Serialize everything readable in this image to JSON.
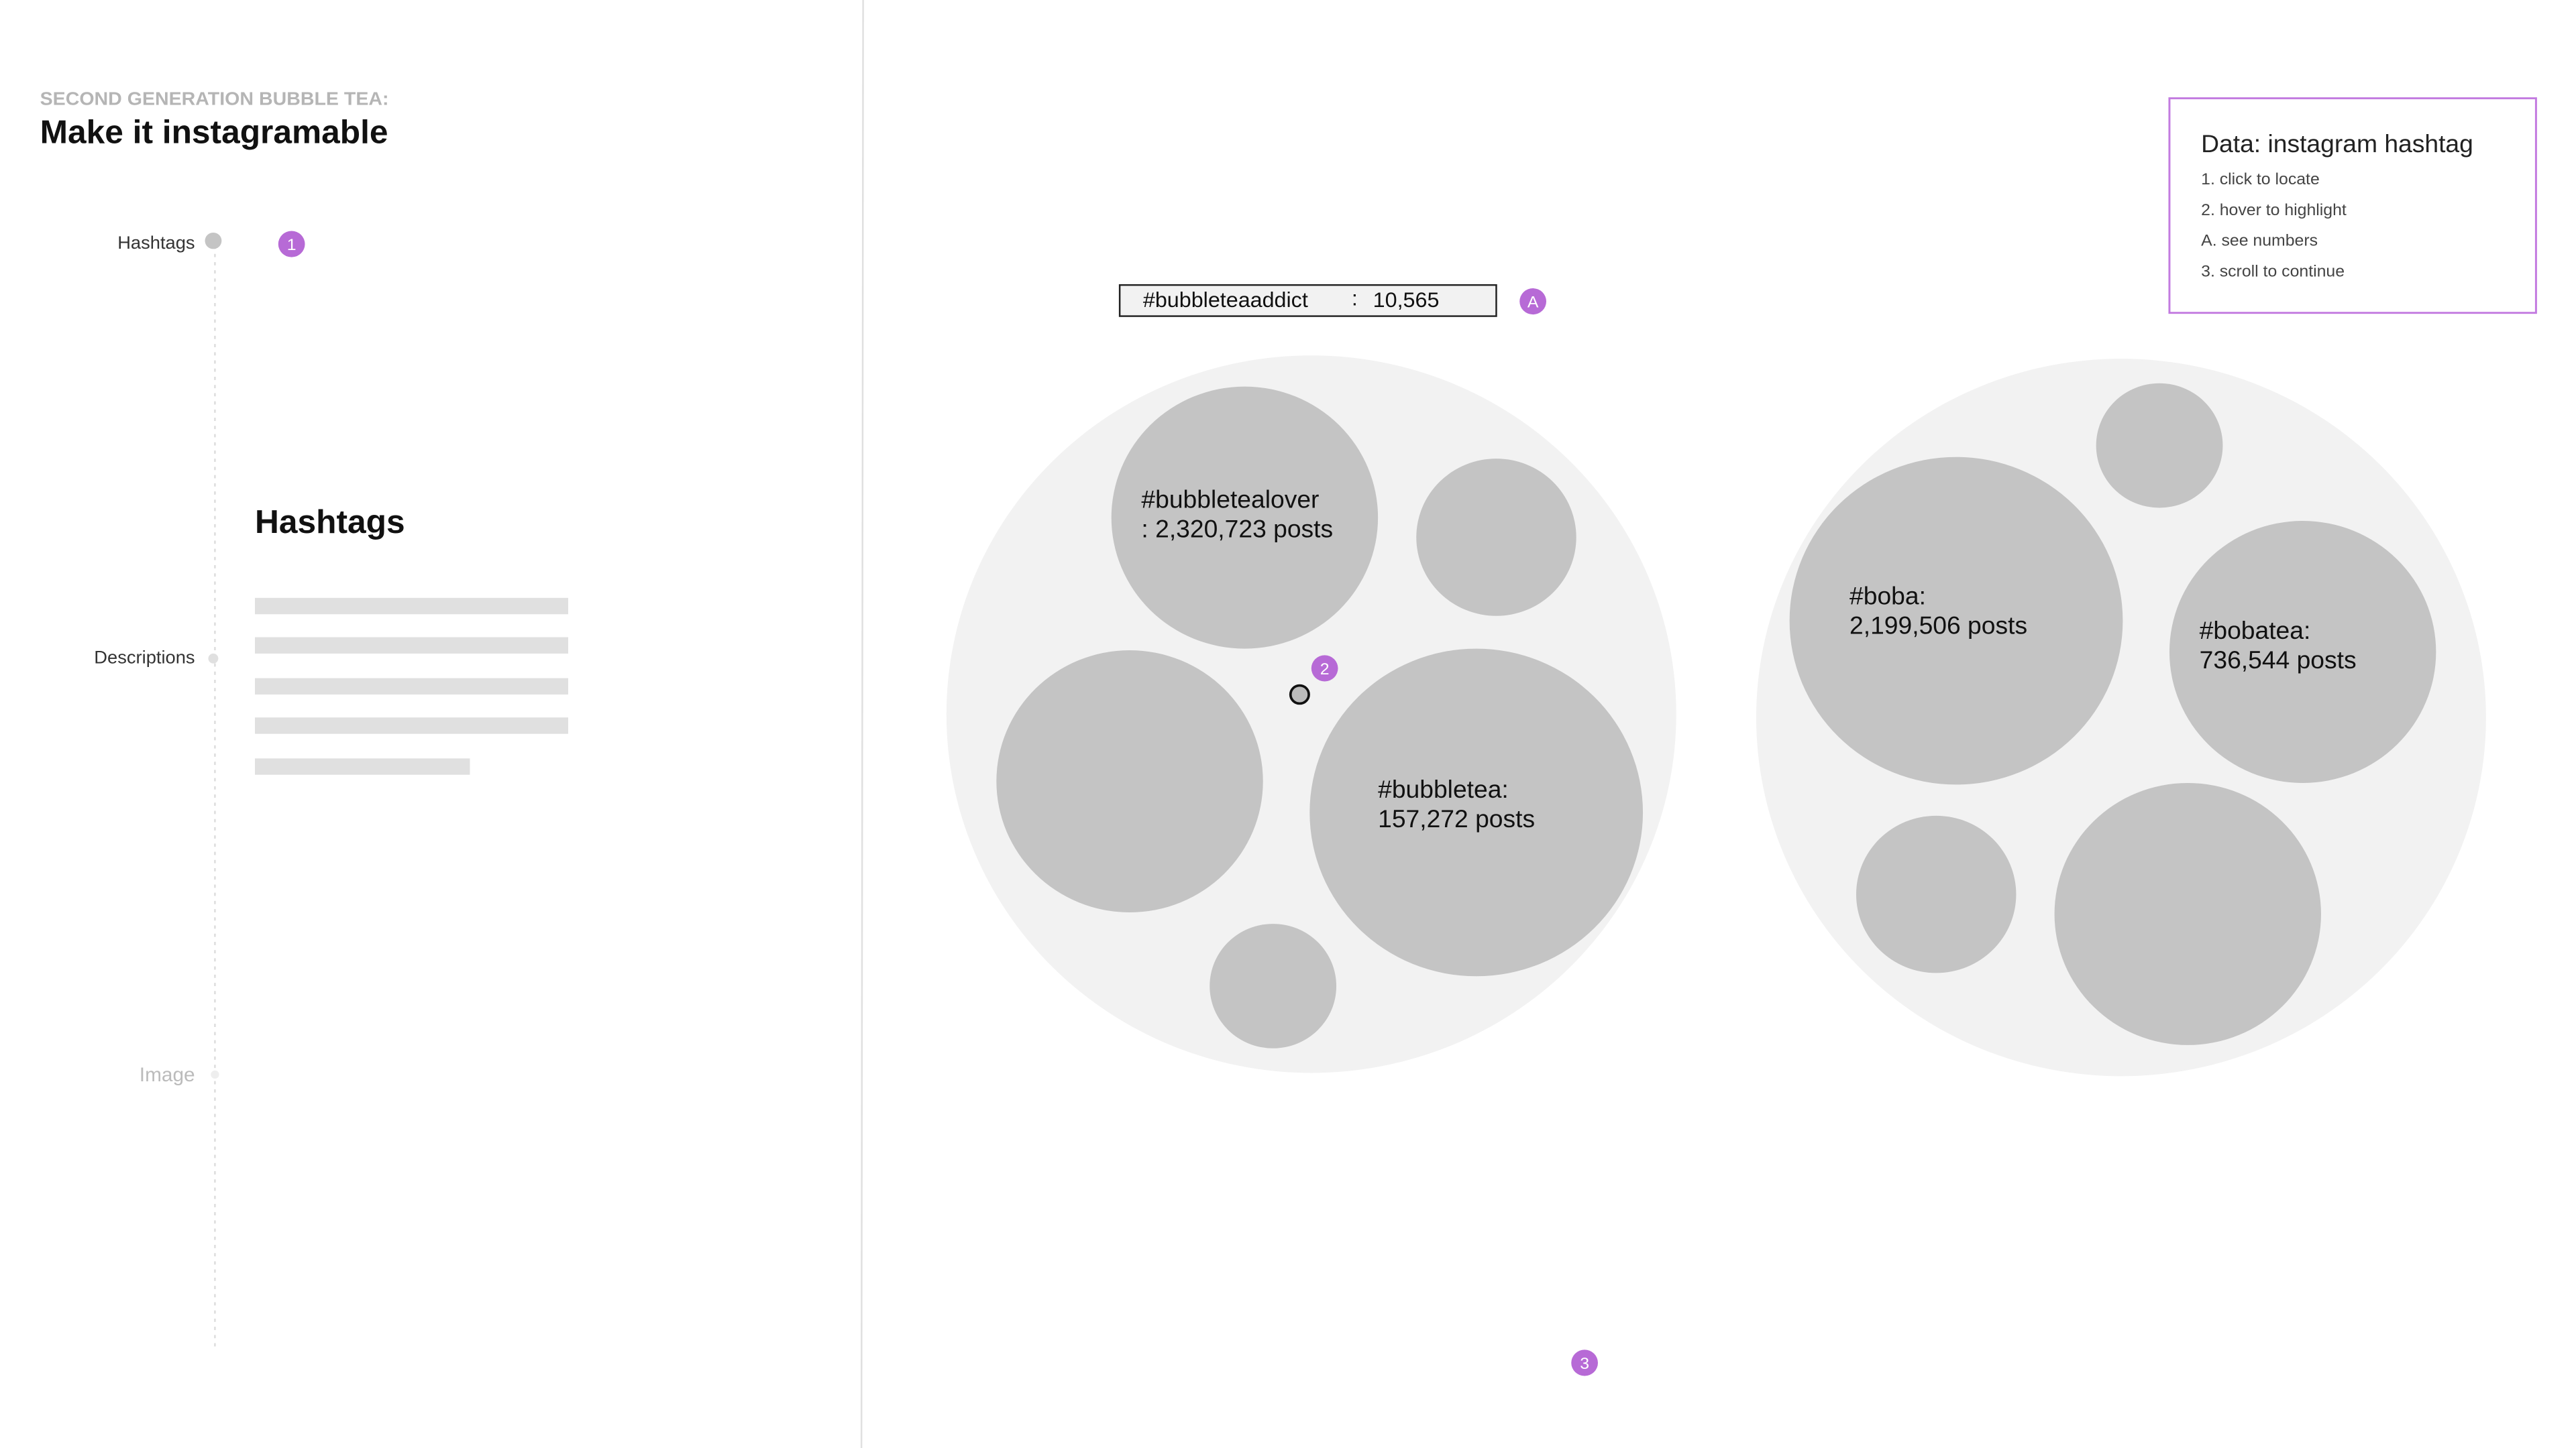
{
  "header": {
    "subtitle": "SECOND GENERATION BUBBLE TEA:",
    "title": "Make it instagramable"
  },
  "nav": [
    "Hashtags",
    "Descriptions",
    "Image"
  ],
  "section": {
    "heading": "Hashtags"
  },
  "tooltip": {
    "tag": "#bubbleteaaddict",
    "separator": ":",
    "count": "10,565"
  },
  "bubbles": [
    {
      "lines": [
        "#bubbletealover",
        ": 2,320,723 posts"
      ]
    },
    {
      "lines": [
        "#bubbletea:",
        "157,272 posts"
      ]
    },
    {
      "lines": [
        "#boba:",
        "2,199,506 posts"
      ]
    },
    {
      "lines": [
        "#bobatea:",
        "736,544 posts"
      ]
    }
  ],
  "legend": {
    "title": "Data: instagram hashtag",
    "items": [
      "1. click to locate",
      "2. hover to highlight",
      "A. see numbers",
      "3. scroll to continue"
    ]
  },
  "markers": [
    "1",
    "2",
    "A",
    "3"
  ]
}
